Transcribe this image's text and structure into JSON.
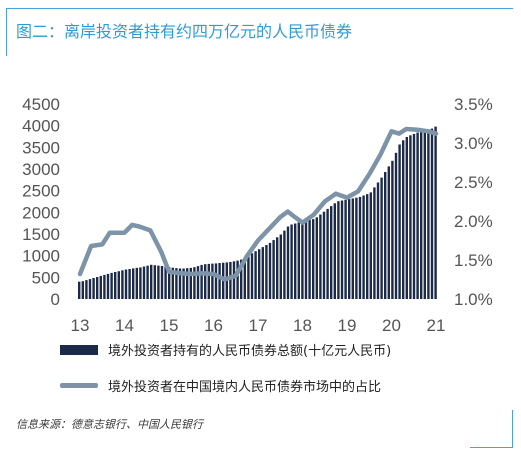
{
  "header": {
    "title": "图二：离岸投资者持有约四万亿元的人民币债券"
  },
  "footer": {
    "source": "信息来源：德意志银行、中国人民银行"
  },
  "legend": {
    "bars_label": "境外投资者持有的人民币债券总额(十亿元人民币)",
    "line_label": "境外投资者在中国境内人民币债券市场中的占比"
  },
  "colors": {
    "bar": "#1c2a4a",
    "line": "#7d93a8",
    "frame": "#4aa3d8",
    "title": "#2e9bd6",
    "axis_text": "#555555"
  },
  "chart_data": {
    "type": "bar",
    "title": "图二：离岸投资者持有约四万亿元的人民币债券",
    "x_ticks": [
      "13",
      "14",
      "15",
      "16",
      "17",
      "18",
      "19",
      "20",
      "21"
    ],
    "x_range": [
      2013.0,
      2021.0
    ],
    "y_left": {
      "ticks": [
        "0",
        "500",
        "1000",
        "1500",
        "2000",
        "2500",
        "3000",
        "3500",
        "4000",
        "4500"
      ],
      "range": [
        0,
        4500
      ]
    },
    "y_right": {
      "ticks": [
        "1.0%",
        "1.5%",
        "2.0%",
        "2.5%",
        "3.0%",
        "3.5%"
      ],
      "range": [
        1.0,
        3.5
      ]
    },
    "grid": false,
    "legend_position": "bottom",
    "series": [
      {
        "name": "境外投资者持有的人民币债券总额(十亿元人民币)",
        "kind": "bar",
        "axis": "left",
        "points": [
          [
            2013.0,
            400
          ],
          [
            2013.33,
            500
          ],
          [
            2013.67,
            600
          ],
          [
            2014.0,
            680
          ],
          [
            2014.33,
            730
          ],
          [
            2014.58,
            790
          ],
          [
            2014.83,
            760
          ],
          [
            2015.0,
            730
          ],
          [
            2015.25,
            700
          ],
          [
            2015.5,
            720
          ],
          [
            2015.75,
            800
          ],
          [
            2016.0,
            820
          ],
          [
            2016.33,
            850
          ],
          [
            2016.58,
            900
          ],
          [
            2016.83,
            1050
          ],
          [
            2017.0,
            1150
          ],
          [
            2017.25,
            1300
          ],
          [
            2017.5,
            1500
          ],
          [
            2017.67,
            1700
          ],
          [
            2017.83,
            1750
          ],
          [
            2018.0,
            1800
          ],
          [
            2018.25,
            1850
          ],
          [
            2018.5,
            2050
          ],
          [
            2018.75,
            2250
          ],
          [
            2019.0,
            2300
          ],
          [
            2019.25,
            2350
          ],
          [
            2019.5,
            2450
          ],
          [
            2019.75,
            2800
          ],
          [
            2020.0,
            3200
          ],
          [
            2020.17,
            3600
          ],
          [
            2020.33,
            3750
          ],
          [
            2020.58,
            3850
          ],
          [
            2020.83,
            3900
          ],
          [
            2021.0,
            4000
          ]
        ]
      },
      {
        "name": "境外投资者在中国境内人民币债券市场中的占比",
        "kind": "line",
        "axis": "right",
        "unit": "%",
        "points": [
          [
            2013.0,
            1.32
          ],
          [
            2013.25,
            1.68
          ],
          [
            2013.5,
            1.7
          ],
          [
            2013.67,
            1.85
          ],
          [
            2014.0,
            1.85
          ],
          [
            2014.17,
            1.95
          ],
          [
            2014.33,
            1.93
          ],
          [
            2014.58,
            1.88
          ],
          [
            2014.83,
            1.6
          ],
          [
            2015.0,
            1.35
          ],
          [
            2015.25,
            1.33
          ],
          [
            2015.5,
            1.32
          ],
          [
            2015.75,
            1.33
          ],
          [
            2016.0,
            1.32
          ],
          [
            2016.25,
            1.25
          ],
          [
            2016.5,
            1.3
          ],
          [
            2016.75,
            1.55
          ],
          [
            2017.0,
            1.75
          ],
          [
            2017.25,
            1.9
          ],
          [
            2017.5,
            2.05
          ],
          [
            2017.67,
            2.12
          ],
          [
            2017.83,
            2.05
          ],
          [
            2018.0,
            1.98
          ],
          [
            2018.25,
            2.08
          ],
          [
            2018.5,
            2.25
          ],
          [
            2018.75,
            2.35
          ],
          [
            2019.0,
            2.3
          ],
          [
            2019.25,
            2.38
          ],
          [
            2019.5,
            2.6
          ],
          [
            2019.75,
            2.85
          ],
          [
            2020.0,
            3.15
          ],
          [
            2020.17,
            3.12
          ],
          [
            2020.33,
            3.18
          ],
          [
            2020.58,
            3.17
          ],
          [
            2020.83,
            3.15
          ],
          [
            2021.0,
            3.12
          ]
        ]
      }
    ]
  }
}
